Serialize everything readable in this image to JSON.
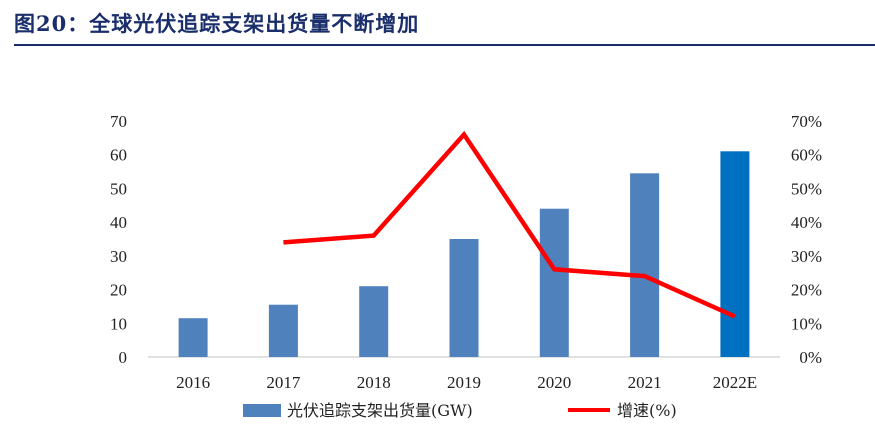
{
  "figure": {
    "title": "图20：全球光伏追踪支架出货量不断增加"
  },
  "chart_data": {
    "type": "bar",
    "categories": [
      "2016",
      "2017",
      "2018",
      "2019",
      "2020",
      "2021",
      "2022E"
    ],
    "series": [
      {
        "name": "光伏追踪支架出货量(GW)",
        "kind": "bar",
        "axis": "left",
        "values": [
          11.5,
          15.5,
          21,
          35,
          44,
          54.5,
          61
        ],
        "color": "#4f81bd",
        "highlight_color": "#0070c0",
        "highlight_index": 6
      },
      {
        "name": "增速(%)",
        "kind": "line",
        "axis": "right",
        "values": [
          null,
          0.34,
          0.36,
          0.66,
          0.26,
          0.24,
          0.12
        ],
        "color": "#ff0000"
      }
    ],
    "y_left": {
      "min": 0,
      "max": 70,
      "ticks": [
        "0",
        "10",
        "20",
        "30",
        "40",
        "50",
        "60",
        "70"
      ]
    },
    "y_right": {
      "min": 0,
      "max": 0.7,
      "ticks": [
        "0%",
        "10%",
        "20%",
        "30%",
        "40%",
        "50%",
        "60%",
        "70%"
      ]
    },
    "grid": false,
    "legend_position": "bottom"
  }
}
